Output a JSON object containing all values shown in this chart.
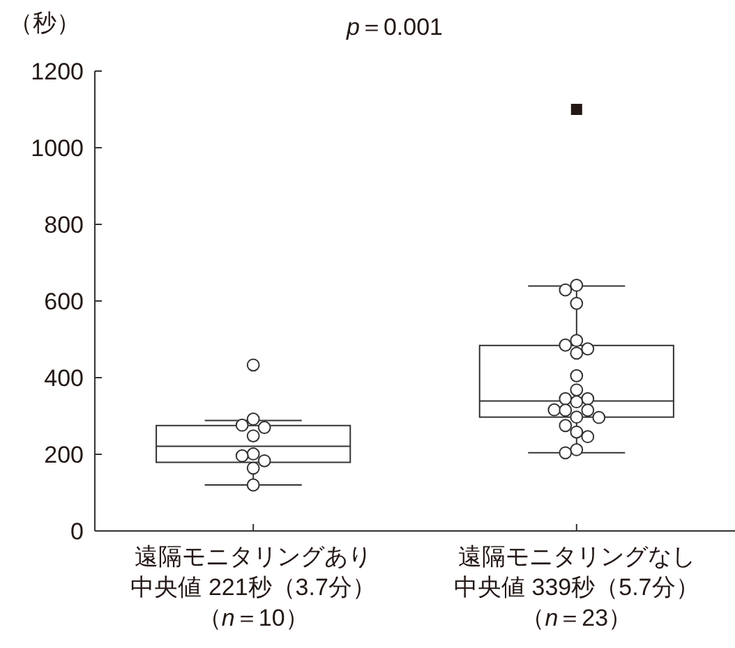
{
  "chart_data": {
    "type": "box",
    "title": "*p*＝0.001",
    "ylabel": "（秒）",
    "categories": [
      "遠隔モニタリングあり中央値 221秒（3.7分）（*n*＝10）",
      "遠隔モニタリングなし中央値 339秒（5.7分）（*n*＝23）"
    ],
    "ylim": [
      0,
      1200
    ],
    "yticks": [
      0,
      200,
      400,
      600,
      800,
      1000,
      1200
    ],
    "grid": false,
    "series": [
      {
        "color": "#333333",
        "boxes": [
          {
            "low": 120,
            "q1": 179,
            "median": 221,
            "q3": 275,
            "high": 288
          },
          {
            "low": 204,
            "q1": 297,
            "median": 339,
            "q3": 484,
            "high": 639,
            "outliers": [
              1100
            ]
          }
        ]
      },
      {
        "type": "scatter",
        "marker": "circle",
        "color": "#333333",
        "x": [
          "遠隔モニタリングあり中央値 221秒（3.7分）（*n*＝10）",
          "遠隔モニタリングあり中央値 221秒（3.7分）（*n*＝10）",
          "遠隔モニタリングあり中央値 221秒（3.7分）（*n*＝10）",
          "遠隔モニタリングあり中央値 221秒（3.7分）（*n*＝10）",
          "遠隔モニタリングあり中央値 221秒（3.7分）（*n*＝10）",
          "遠隔モニタリングあり中央値 221秒（3.7分）（*n*＝10）",
          "遠隔モニタリングあり中央値 221秒（3.7分）（*n*＝10）",
          "遠隔モニタリングあり中央値 221秒（3.7分）（*n*＝10）",
          "遠隔モニタリングあり中央値 221秒（3.7分）（*n*＝10）",
          "遠隔モニタリングあり中央値 221秒（3.7分）（*n*＝10）",
          "遠隔モニタリングなし中央値 339秒（5.7分）（*n*＝23）",
          "遠隔モニタリングなし中央値 339秒（5.7分）（*n*＝23）",
          "遠隔モニタリングなし中央値 339秒（5.7分）（*n*＝23）",
          "遠隔モニタリングなし中央値 339秒（5.7分）（*n*＝23）",
          "遠隔モニタリングなし中央値 339秒（5.7分）（*n*＝23）",
          "遠隔モニタリングなし中央値 339秒（5.7分）（*n*＝23）",
          "遠隔モニタリングなし中央値 339秒（5.7分）（*n*＝23）",
          "遠隔モニタリングなし中央値 339秒（5.7分）（*n*＝23）",
          "遠隔モニタリングなし中央値 339秒（5.7分）（*n*＝23）",
          "遠隔モニタリングなし中央値 339秒（5.7分）（*n*＝23）",
          "遠隔モニタリングなし中央値 339秒（5.7分）（*n*＝23）",
          "遠隔モニタリングなし中央値 339秒（5.7分）（*n*＝23）",
          "遠隔モニタリングなし中央値 339秒（5.7分）（*n*＝23）",
          "遠隔モニタリングなし中央値 339秒（5.7分）（*n*＝23）",
          "遠隔モニタリングなし中央値 339秒（5.7分）（*n*＝23）",
          "遠隔モニタリングなし中央値 339秒（5.7分）（*n*＝23）",
          "遠隔モニタリングなし中央値 339秒（5.7分）（*n*＝23）",
          "遠隔モニタリングなし中央値 339秒（5.7分）（*n*＝23）",
          "遠隔モニタリングなし中央値 339秒（5.7分）（*n*＝23）",
          "遠隔モニタリングなし中央値 339秒（5.7分）（*n*＝23）",
          "遠隔モニタリングなし中央値 339秒（5.7分）（*n*＝23）",
          "遠隔モニタリングなし中央値 339秒（5.7分）（*n*＝23）"
        ],
        "values": [
          433,
          292,
          276,
          270,
          248,
          201,
          196,
          183,
          164,
          120,
          641,
          629,
          594,
          497,
          485,
          475,
          464,
          405,
          368,
          345,
          345,
          337,
          316,
          315,
          315,
          297,
          296,
          275,
          258,
          246,
          212,
          204
        ]
      }
    ]
  }
}
